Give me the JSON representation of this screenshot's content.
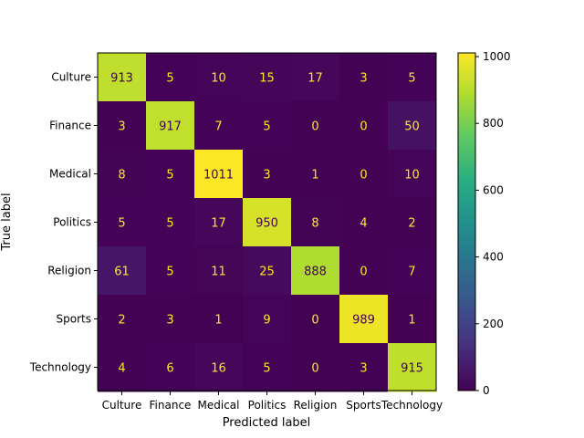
{
  "chart_data": {
    "type": "heatmap",
    "title": "",
    "xlabel": "Predicted label",
    "ylabel": "True label",
    "labels": [
      "Culture",
      "Finance",
      "Medical",
      "Politics",
      "Religion",
      "Sports",
      "Technology"
    ],
    "matrix": [
      [
        913,
        5,
        10,
        15,
        17,
        3,
        5
      ],
      [
        3,
        917,
        7,
        5,
        0,
        0,
        50
      ],
      [
        8,
        5,
        1011,
        3,
        1,
        0,
        10
      ],
      [
        5,
        5,
        17,
        950,
        8,
        4,
        2
      ],
      [
        61,
        5,
        11,
        25,
        888,
        0,
        7
      ],
      [
        2,
        3,
        1,
        9,
        0,
        989,
        1
      ],
      [
        4,
        6,
        16,
        5,
        0,
        3,
        915
      ]
    ],
    "colorbar": {
      "colormap": "viridis",
      "range": [
        0,
        1011
      ],
      "ticks": [
        0,
        200,
        400,
        600,
        800,
        1000
      ],
      "tick_labels": [
        "0",
        "200",
        "400",
        "600",
        "800",
        "1000"
      ]
    }
  }
}
